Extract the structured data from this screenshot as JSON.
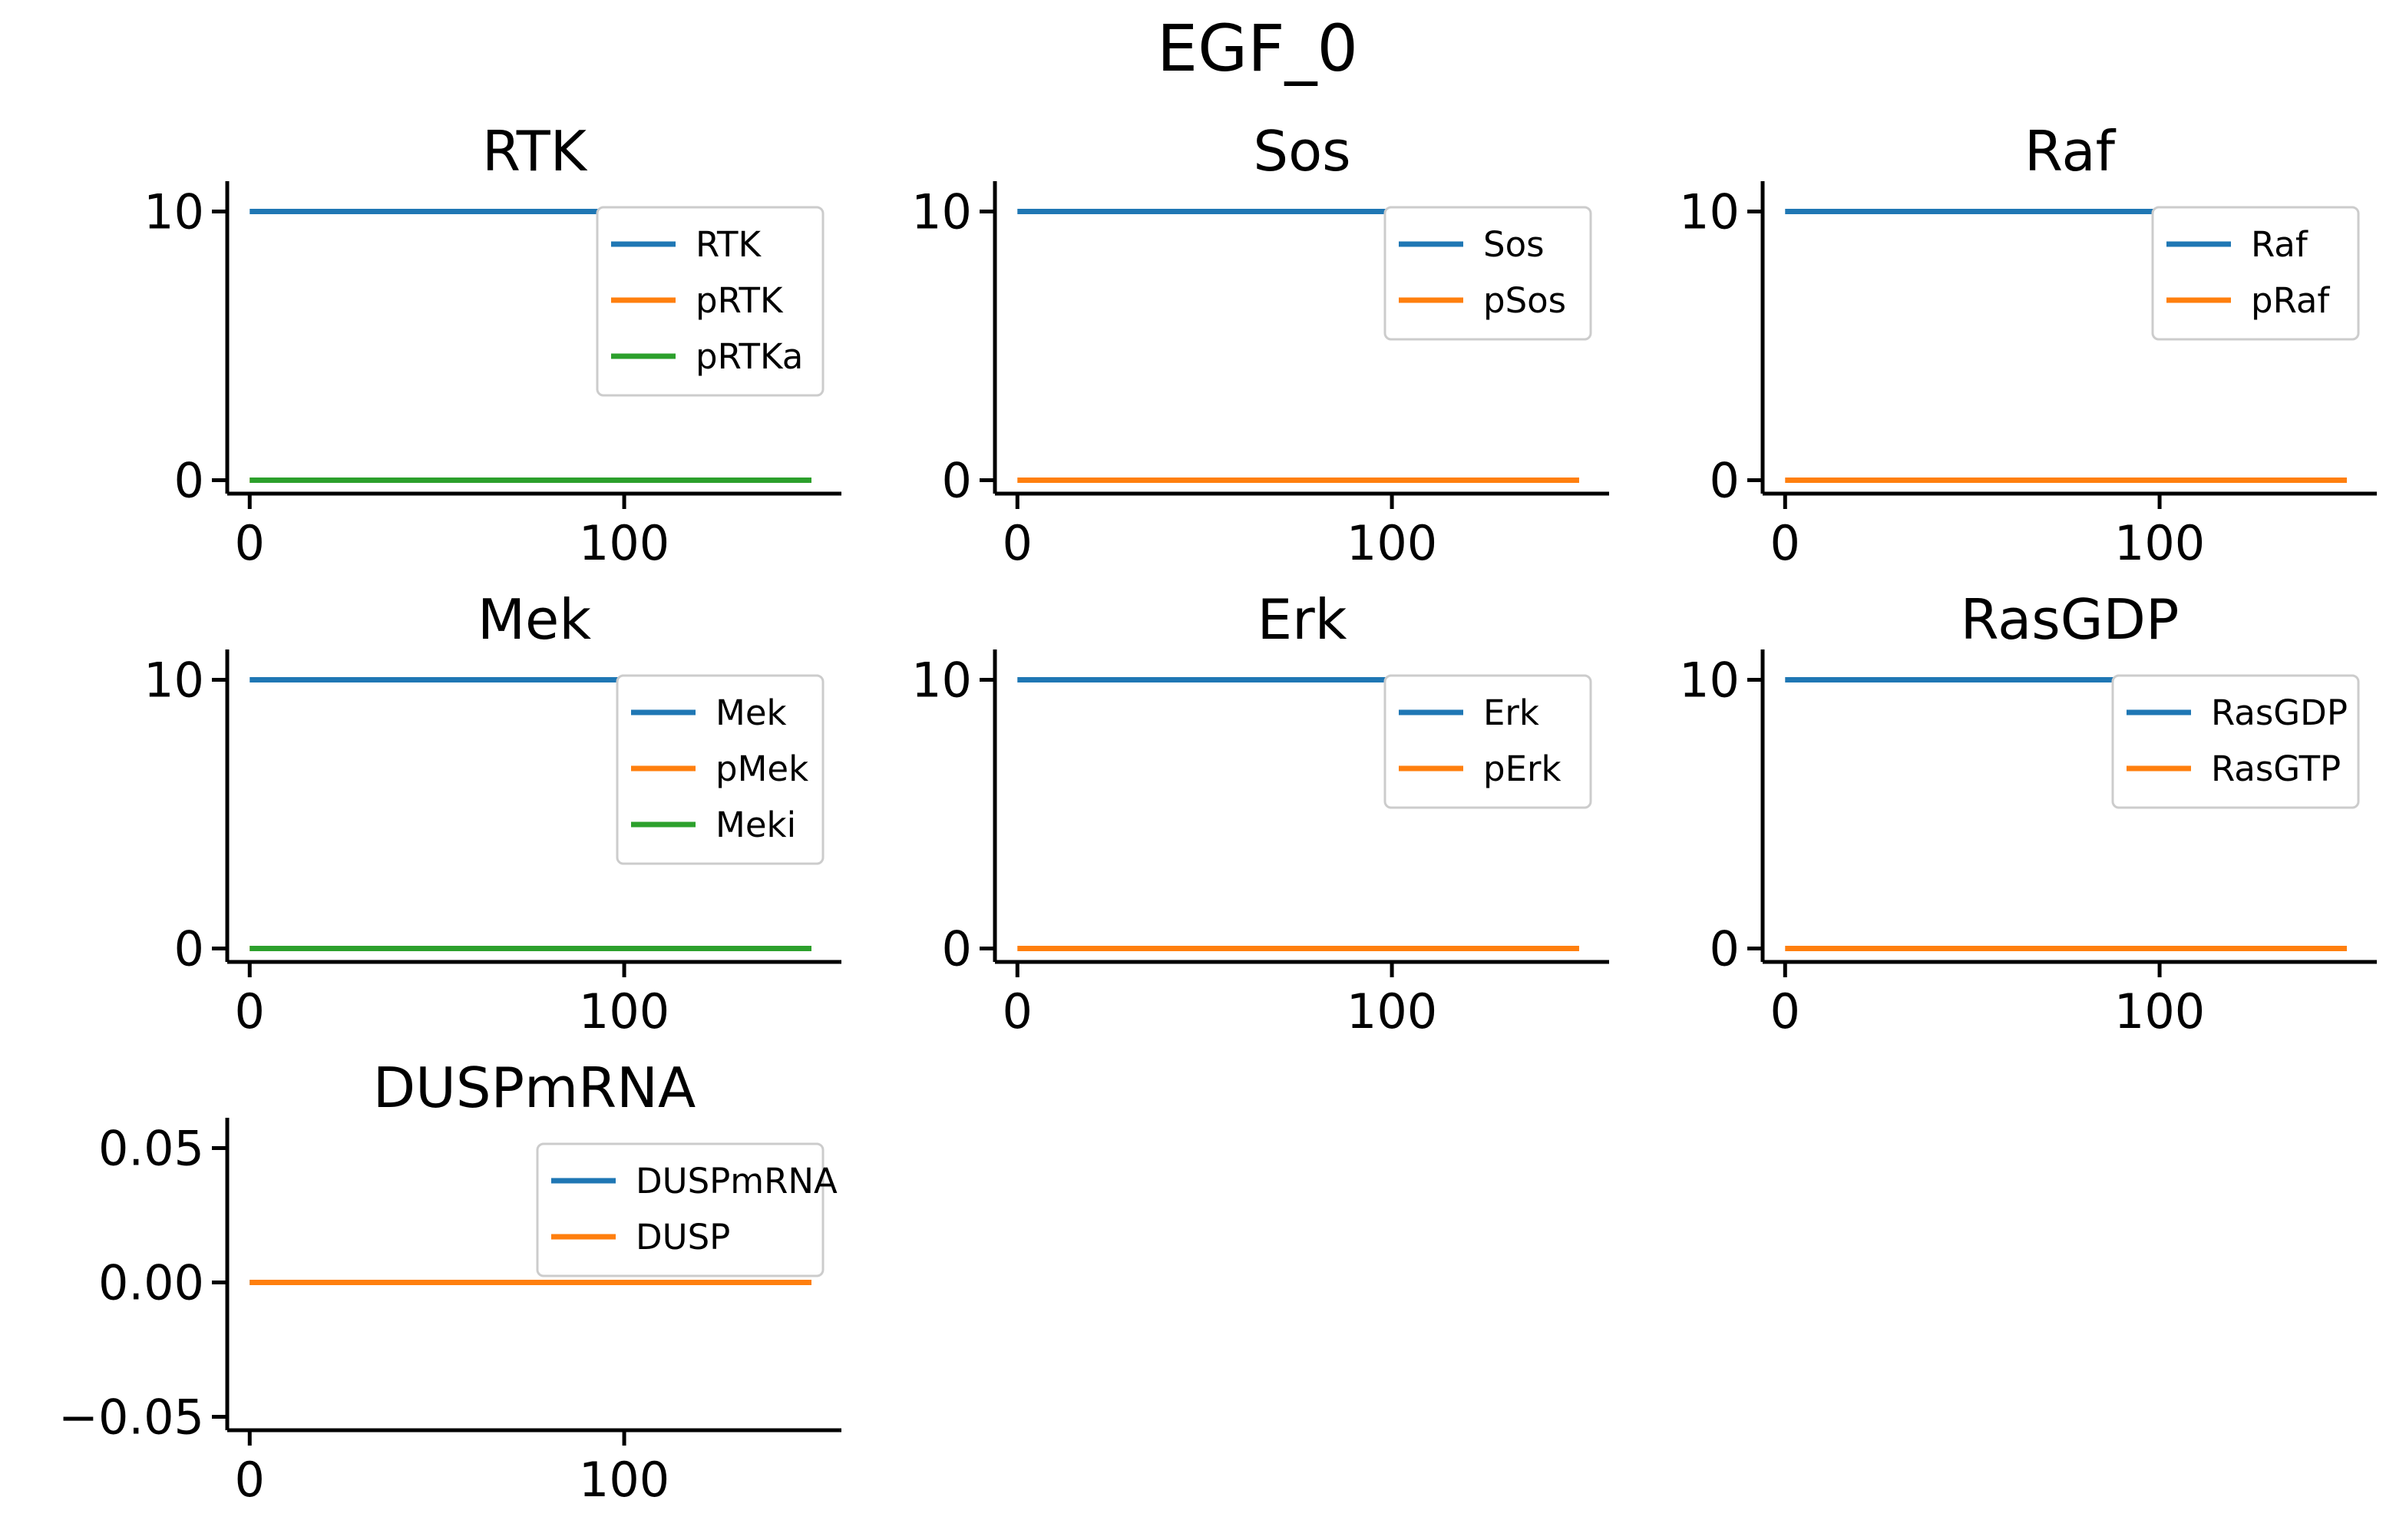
{
  "figure_title": "EGF_0",
  "chart_data": [
    {
      "type": "line",
      "title": "RTK",
      "xlim": [
        -6,
        158
      ],
      "ylim": [
        -0.5,
        10.5
      ],
      "xticks": [
        0,
        100
      ],
      "xtick_labels": [
        "0",
        "100"
      ],
      "yticks": [
        0,
        10
      ],
      "ytick_labels": [
        "0",
        "10"
      ],
      "legend": "upper right",
      "series": [
        {
          "name": "RTK",
          "color": "#1f77b4",
          "x": [
            0,
            150
          ],
          "y": [
            10,
            10
          ]
        },
        {
          "name": "pRTK",
          "color": "#ff7f0e",
          "x": [
            0,
            150
          ],
          "y": [
            0,
            0
          ]
        },
        {
          "name": "pRTKa",
          "color": "#2ca02c",
          "x": [
            0,
            150
          ],
          "y": [
            0,
            0
          ]
        }
      ]
    },
    {
      "type": "line",
      "title": "Sos",
      "xlim": [
        -6,
        158
      ],
      "ylim": [
        -0.5,
        10.5
      ],
      "xticks": [
        0,
        100
      ],
      "xtick_labels": [
        "0",
        "100"
      ],
      "yticks": [
        0,
        10
      ],
      "ytick_labels": [
        "0",
        "10"
      ],
      "legend": "upper right",
      "series": [
        {
          "name": "Sos",
          "color": "#1f77b4",
          "x": [
            0,
            150
          ],
          "y": [
            10,
            10
          ]
        },
        {
          "name": "pSos",
          "color": "#ff7f0e",
          "x": [
            0,
            150
          ],
          "y": [
            0,
            0
          ]
        }
      ]
    },
    {
      "type": "line",
      "title": "Raf",
      "xlim": [
        -6,
        158
      ],
      "ylim": [
        -0.5,
        10.5
      ],
      "xticks": [
        0,
        100
      ],
      "xtick_labels": [
        "0",
        "100"
      ],
      "yticks": [
        0,
        10
      ],
      "ytick_labels": [
        "0",
        "10"
      ],
      "legend": "upper right",
      "series": [
        {
          "name": "Raf",
          "color": "#1f77b4",
          "x": [
            0,
            150
          ],
          "y": [
            10,
            10
          ]
        },
        {
          "name": "pRaf",
          "color": "#ff7f0e",
          "x": [
            0,
            150
          ],
          "y": [
            0,
            0
          ]
        }
      ]
    },
    {
      "type": "line",
      "title": "Mek",
      "xlim": [
        -6,
        158
      ],
      "ylim": [
        -0.5,
        10.5
      ],
      "xticks": [
        0,
        100
      ],
      "xtick_labels": [
        "0",
        "100"
      ],
      "yticks": [
        0,
        10
      ],
      "ytick_labels": [
        "0",
        "10"
      ],
      "legend": "upper right",
      "series": [
        {
          "name": "Mek",
          "color": "#1f77b4",
          "x": [
            0,
            150
          ],
          "y": [
            10,
            10
          ]
        },
        {
          "name": "pMek",
          "color": "#ff7f0e",
          "x": [
            0,
            150
          ],
          "y": [
            0,
            0
          ]
        },
        {
          "name": "Meki",
          "color": "#2ca02c",
          "x": [
            0,
            150
          ],
          "y": [
            0,
            0
          ]
        }
      ]
    },
    {
      "type": "line",
      "title": "Erk",
      "xlim": [
        -6,
        158
      ],
      "ylim": [
        -0.5,
        10.5
      ],
      "xticks": [
        0,
        100
      ],
      "xtick_labels": [
        "0",
        "100"
      ],
      "yticks": [
        0,
        10
      ],
      "ytick_labels": [
        "0",
        "10"
      ],
      "legend": "upper right",
      "series": [
        {
          "name": "Erk",
          "color": "#1f77b4",
          "x": [
            0,
            150
          ],
          "y": [
            10,
            10
          ]
        },
        {
          "name": "pErk",
          "color": "#ff7f0e",
          "x": [
            0,
            150
          ],
          "y": [
            0,
            0
          ]
        }
      ]
    },
    {
      "type": "line",
      "title": "RasGDP",
      "xlim": [
        -6,
        158
      ],
      "ylim": [
        -0.5,
        10.5
      ],
      "xticks": [
        0,
        100
      ],
      "xtick_labels": [
        "0",
        "100"
      ],
      "yticks": [
        0,
        10
      ],
      "ytick_labels": [
        "0",
        "10"
      ],
      "legend": "upper right",
      "series": [
        {
          "name": "RasGDP",
          "color": "#1f77b4",
          "x": [
            0,
            150
          ],
          "y": [
            10,
            10
          ]
        },
        {
          "name": "RasGTP",
          "color": "#ff7f0e",
          "x": [
            0,
            150
          ],
          "y": [
            0,
            0
          ]
        }
      ]
    },
    {
      "type": "line",
      "title": "DUSPmRNA",
      "xlim": [
        -6,
        158
      ],
      "ylim": [
        -0.055,
        0.055
      ],
      "xticks": [
        0,
        100
      ],
      "xtick_labels": [
        "0",
        "100"
      ],
      "yticks": [
        0.05,
        0,
        -0.05
      ],
      "ytick_labels": [
        "0.05",
        "0.00",
        "−0.05"
      ],
      "legend": "upper right",
      "series": [
        {
          "name": "DUSPmRNA",
          "color": "#1f77b4",
          "x": [
            0,
            150
          ],
          "y": [
            0,
            0
          ]
        },
        {
          "name": "DUSP",
          "color": "#ff7f0e",
          "x": [
            0,
            150
          ],
          "y": [
            0,
            0
          ]
        }
      ]
    }
  ]
}
